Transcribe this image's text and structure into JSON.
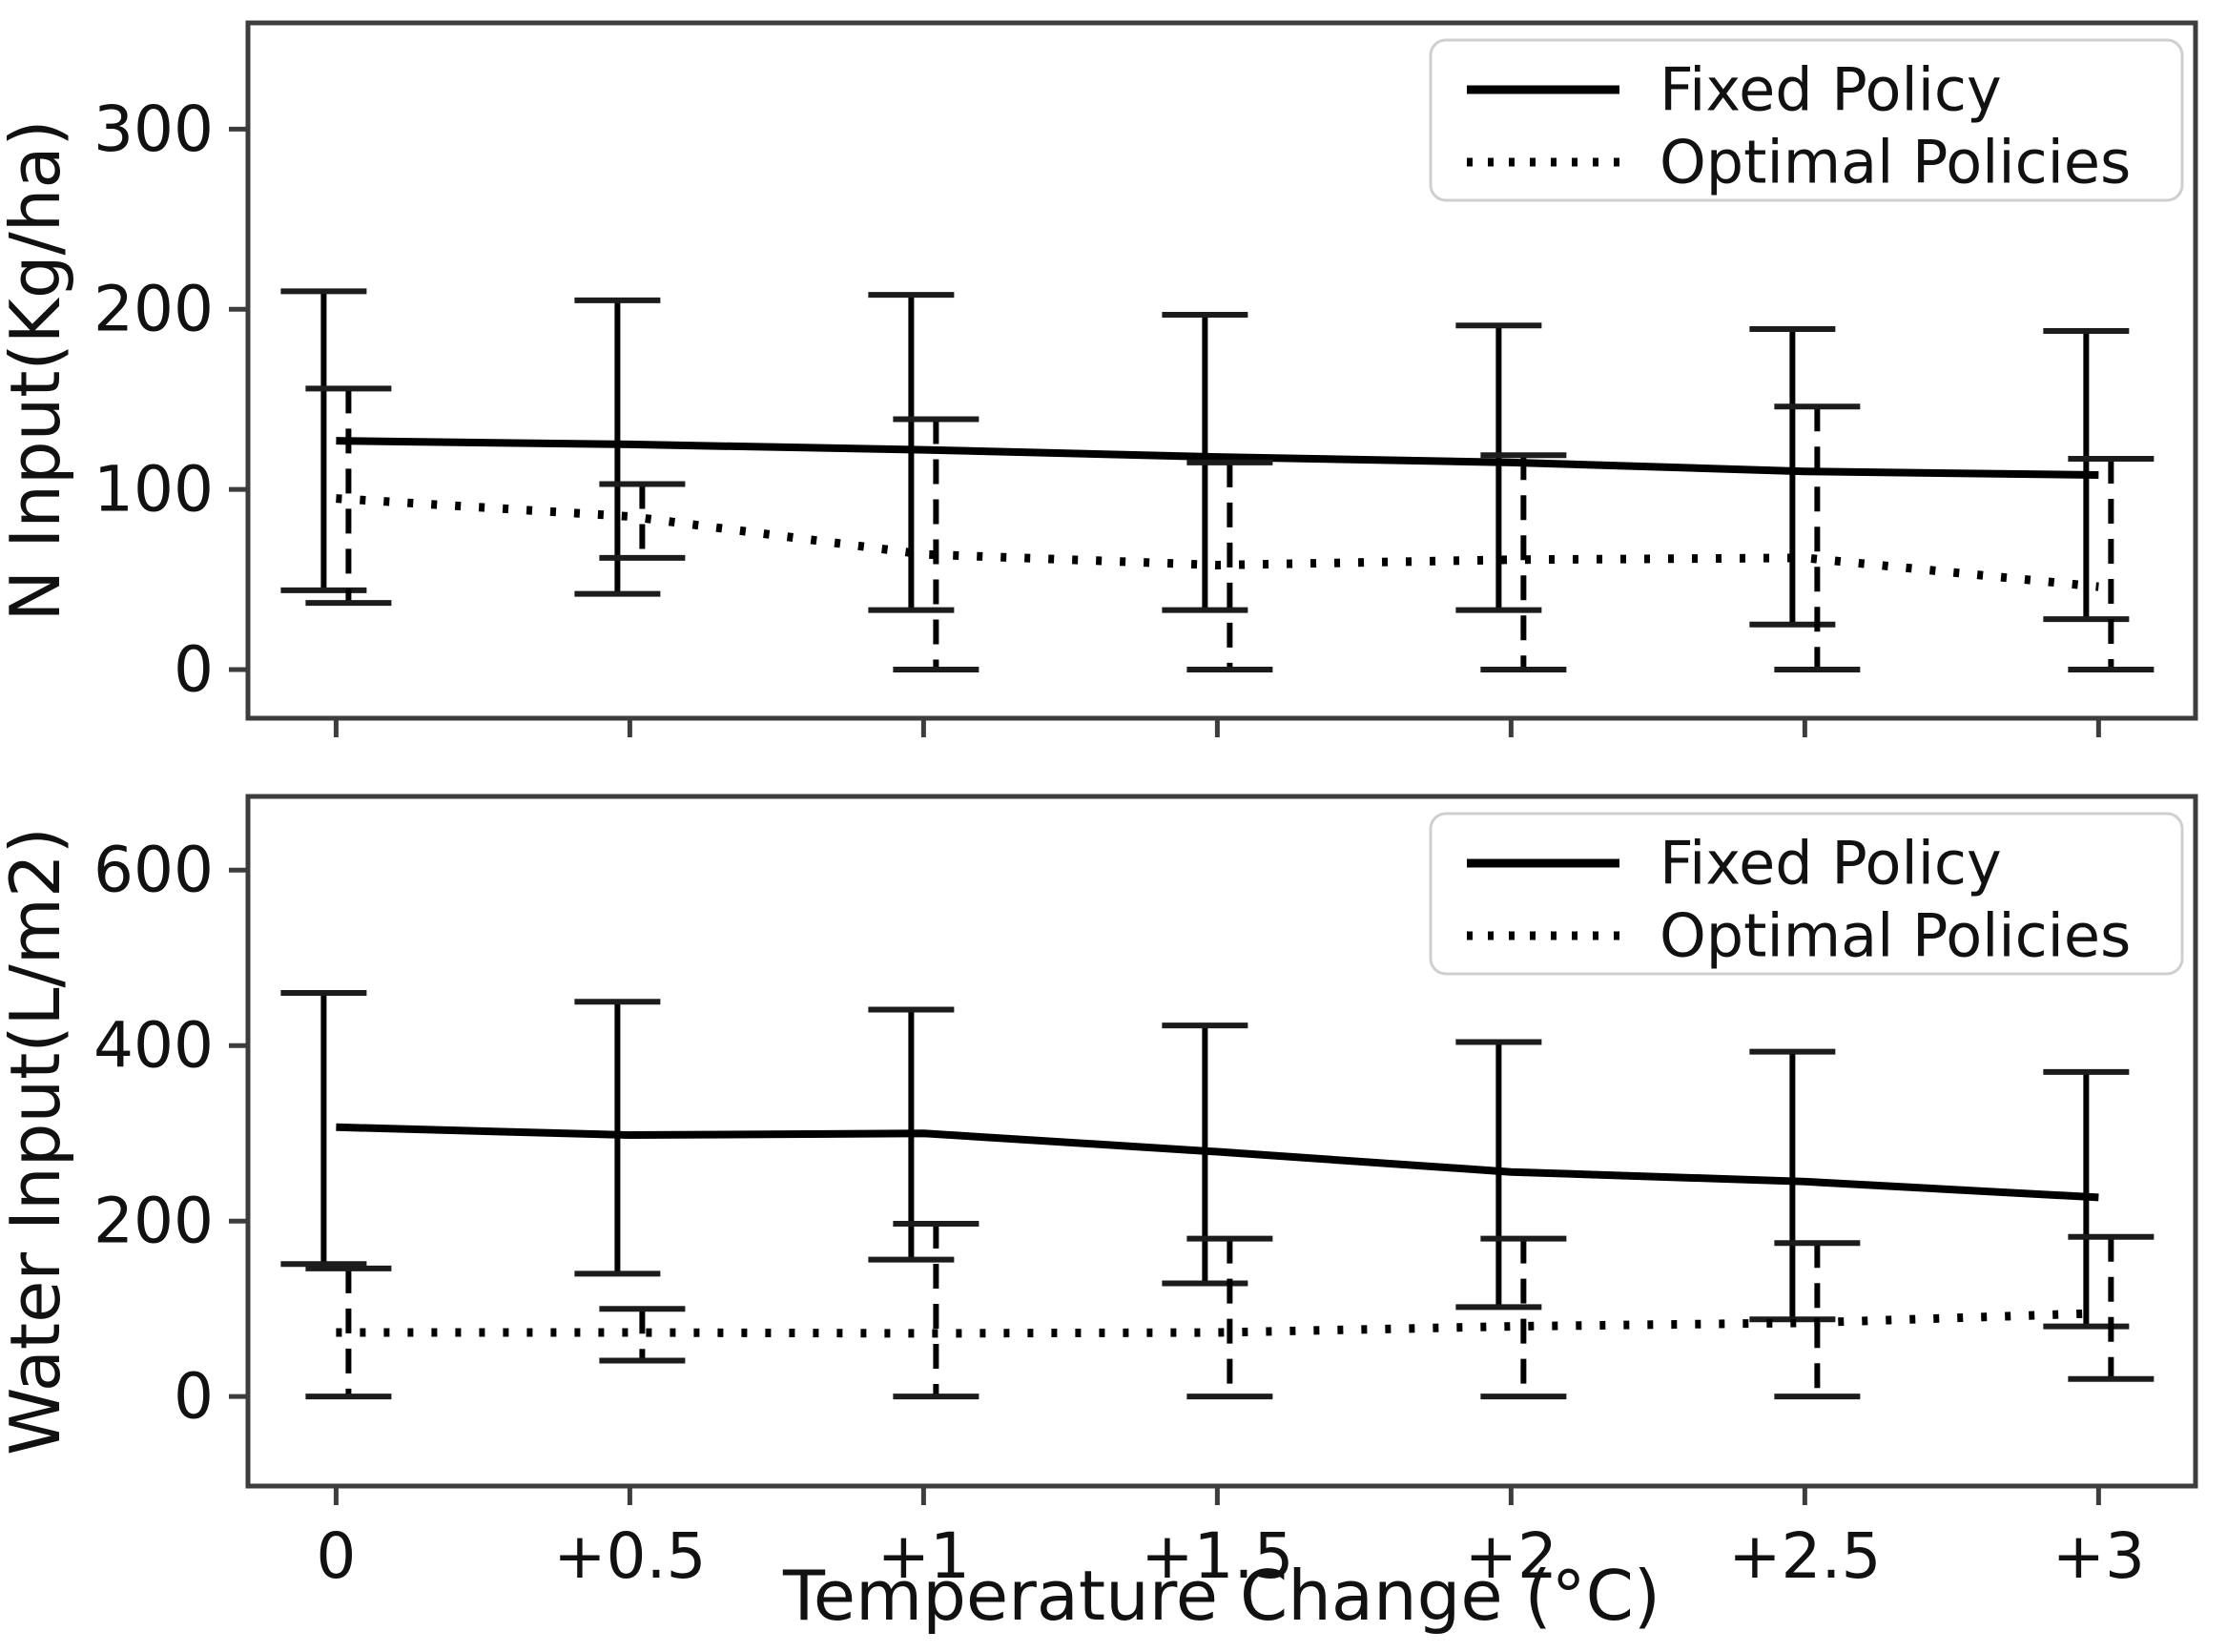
{
  "figure": {
    "background": "#ffffff",
    "ink_color": "#000000",
    "spine_color": "#3d3d3d",
    "legend_border_color": "#cfcfcf"
  },
  "chart_data": [
    {
      "type": "line",
      "title": "",
      "xlabel": "",
      "ylabel": "N Input(Kg/ha)",
      "categories": [
        "0",
        "+0.5",
        "+1",
        "+1.5",
        "+2",
        "+2.5",
        "+3"
      ],
      "yticks": [
        0,
        100,
        200,
        300
      ],
      "ylim": [
        -27,
        359
      ],
      "grid": false,
      "legend": {
        "position": "upper right",
        "entries": [
          "Fixed Policy",
          "Optimal Policies"
        ]
      },
      "series": [
        {
          "name": "Fixed Policy",
          "style": "solid",
          "values": [
            127,
            125,
            122,
            118,
            115,
            110,
            108
          ],
          "err_low": [
            44,
            42,
            33,
            33,
            33,
            25,
            28
          ],
          "err_high": [
            210,
            205,
            208,
            197,
            191,
            189,
            188
          ]
        },
        {
          "name": "Optimal Policies",
          "style": "dotted",
          "values": [
            95,
            85,
            64,
            58,
            61,
            62,
            46
          ],
          "err_low": [
            37,
            62,
            0,
            0,
            0,
            0,
            0
          ],
          "err_high": [
            156,
            103,
            139,
            115,
            119,
            146,
            117
          ]
        }
      ]
    },
    {
      "type": "line",
      "title": "",
      "xlabel": "Temperature Change (°C)",
      "ylabel": "Water Input(L/m2)",
      "categories": [
        "0",
        "+0.5",
        "+1",
        "+1.5",
        "+2",
        "+2.5",
        "+3"
      ],
      "yticks": [
        0,
        200,
        400,
        600
      ],
      "ylim": [
        -102,
        684
      ],
      "grid": false,
      "legend": {
        "position": "upper right",
        "entries": [
          "Fixed Policy",
          "Optimal Policies"
        ]
      },
      "series": [
        {
          "name": "Fixed Policy",
          "style": "solid",
          "values": [
            307,
            298,
            300,
            279,
            256,
            245,
            227
          ],
          "err_low": [
            151,
            140,
            156,
            129,
            102,
            88,
            80
          ],
          "err_high": [
            460,
            450,
            441,
            423,
            404,
            393,
            370
          ]
        },
        {
          "name": "Optimal Policies",
          "style": "dotted",
          "values": [
            73,
            73,
            72,
            73,
            80,
            84,
            95
          ],
          "err_low": [
            0,
            41,
            0,
            0,
            0,
            0,
            20
          ],
          "err_high": [
            146,
            100,
            197,
            180,
            180,
            175,
            182
          ]
        }
      ]
    }
  ]
}
